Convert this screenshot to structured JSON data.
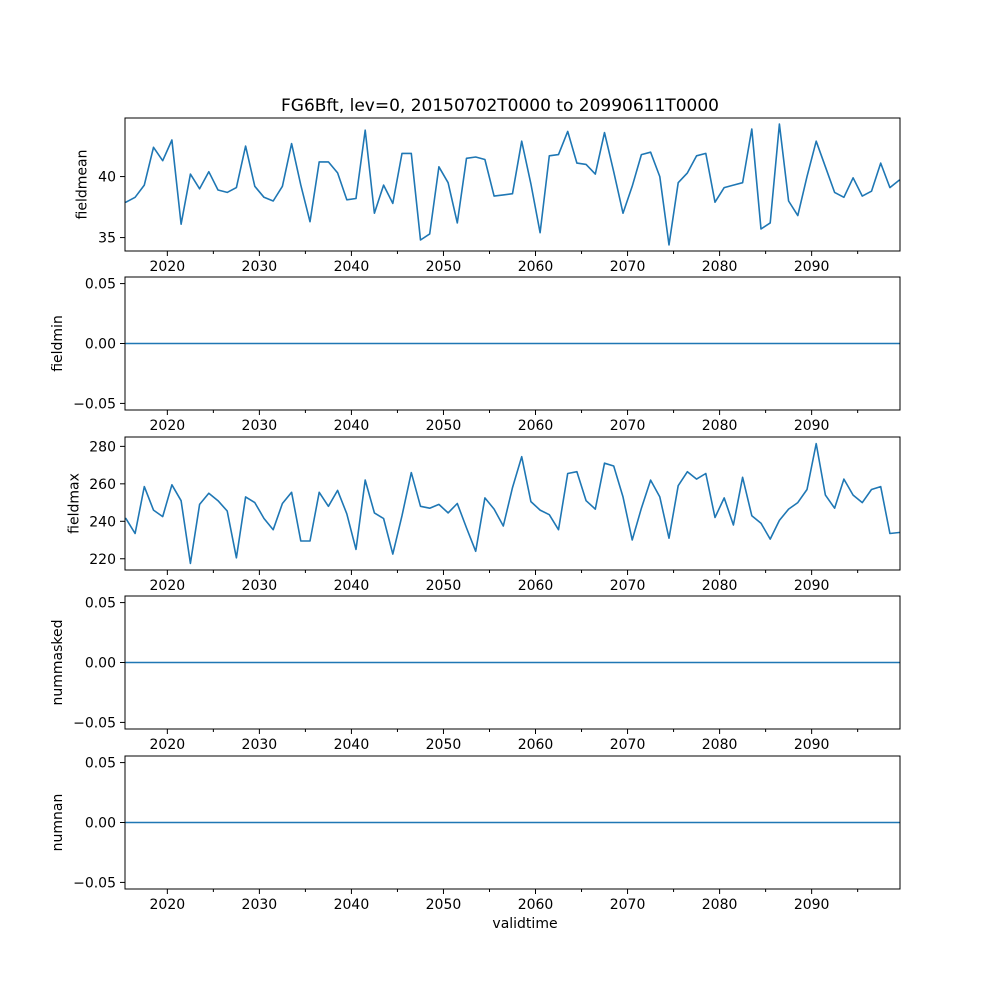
{
  "chart_data": {
    "type": "line",
    "title": "FG6Bft, lev=0, 20150702T0000 to 20990611T0000",
    "xlabel": "validtime",
    "line_color": "#1f77b4",
    "axis_color": "#000000",
    "background_color": "#ffffff",
    "grid": false,
    "legend": false,
    "xlim": [
      2015.4,
      2099.6
    ],
    "x_ticks_major": [
      2020,
      2030,
      2040,
      2050,
      2060,
      2070,
      2080,
      2090
    ],
    "x_ticks_minor": [
      2025,
      2035,
      2045,
      2055,
      2065,
      2075,
      2085,
      2095
    ],
    "x_years": [
      2015.5,
      2016.5,
      2017.5,
      2018.5,
      2019.5,
      2020.5,
      2021.5,
      2022.5,
      2023.5,
      2024.5,
      2025.5,
      2026.5,
      2027.5,
      2028.5,
      2029.5,
      2030.5,
      2031.5,
      2032.5,
      2033.5,
      2034.5,
      2035.5,
      2036.5,
      2037.5,
      2038.5,
      2039.5,
      2040.5,
      2041.5,
      2042.5,
      2043.5,
      2044.5,
      2045.5,
      2046.5,
      2047.5,
      2048.5,
      2049.5,
      2050.5,
      2051.5,
      2052.5,
      2053.5,
      2054.5,
      2055.5,
      2056.5,
      2057.5,
      2058.5,
      2059.5,
      2060.5,
      2061.5,
      2062.5,
      2063.5,
      2064.5,
      2065.5,
      2066.5,
      2067.5,
      2068.5,
      2069.5,
      2070.5,
      2071.5,
      2072.5,
      2073.5,
      2074.5,
      2075.5,
      2076.5,
      2077.5,
      2078.5,
      2079.5,
      2080.5,
      2081.5,
      2082.5,
      2083.5,
      2084.5,
      2085.5,
      2086.5,
      2087.5,
      2088.5,
      2089.5,
      2090.5,
      2091.5,
      2092.5,
      2093.5,
      2094.5,
      2095.5,
      2096.5,
      2097.5,
      2098.5,
      2099.5
    ],
    "panels": [
      {
        "ylabel": "fieldmean",
        "ylim": [
          33.9,
          44.8
        ],
        "yticks": [
          35,
          40
        ],
        "ytick_labels": [
          "35",
          "40"
        ],
        "values": [
          37.9,
          38.3,
          39.3,
          42.4,
          41.3,
          43.0,
          36.1,
          40.2,
          39.0,
          40.4,
          38.9,
          38.7,
          39.1,
          42.5,
          39.2,
          38.3,
          38.0,
          39.2,
          42.7,
          39.3,
          36.3,
          41.2,
          41.2,
          40.3,
          38.1,
          38.2,
          43.8,
          37.0,
          39.3,
          37.8,
          41.9,
          41.9,
          34.8,
          35.3,
          40.8,
          39.5,
          36.2,
          41.5,
          41.6,
          41.4,
          38.4,
          38.5,
          38.6,
          42.9,
          39.4,
          35.4,
          41.7,
          41.8,
          43.7,
          41.1,
          41.0,
          40.2,
          43.6,
          40.4,
          37.0,
          39.2,
          41.8,
          42.0,
          40.0,
          34.4,
          39.5,
          40.3,
          41.7,
          41.9,
          37.9,
          39.1,
          39.3,
          39.5,
          43.9,
          35.7,
          36.2,
          44.3,
          38.0,
          36.8,
          40.0,
          42.9,
          40.8,
          38.7,
          38.3,
          39.9,
          38.4,
          38.8,
          41.1,
          39.1,
          39.7
        ]
      },
      {
        "ylabel": "fieldmin",
        "ylim": [
          -0.0555,
          0.0555
        ],
        "yticks": [
          0.05,
          0.0,
          -0.05
        ],
        "ytick_labels": [
          "0.05",
          "0.00",
          "−0.05"
        ],
        "constant_value": 0
      },
      {
        "ylabel": "fieldmax",
        "ylim": [
          214,
          285
        ],
        "yticks": [
          220,
          240,
          260,
          280
        ],
        "ytick_labels": [
          "220",
          "240",
          "260",
          "280"
        ],
        "values": [
          241.5,
          233.5,
          258.5,
          246,
          242.5,
          259.5,
          251,
          217.5,
          249,
          255,
          251,
          245.5,
          220.5,
          253,
          250,
          241.5,
          235.5,
          249.5,
          255.5,
          229.5,
          229.5,
          255.5,
          248,
          256.5,
          244,
          225,
          262,
          244.5,
          241.5,
          222.5,
          243,
          266,
          248,
          247,
          249,
          244.5,
          249.5,
          236.5,
          224,
          252.5,
          246.5,
          237.5,
          258,
          274.5,
          250.5,
          246,
          243.5,
          235.5,
          265.5,
          266.5,
          251,
          246.5,
          271,
          269.5,
          253,
          230,
          247,
          262,
          253,
          231,
          259,
          266.5,
          262.5,
          265.5,
          242,
          252.5,
          238,
          263.5,
          243,
          239,
          230.5,
          240.5,
          246.5,
          250,
          257,
          281.5,
          254,
          247,
          262.5,
          254,
          250,
          257,
          258.5,
          233.5,
          234
        ]
      },
      {
        "ylabel": "nummasked",
        "ylim": [
          -0.0555,
          0.0555
        ],
        "yticks": [
          0.05,
          0.0,
          -0.05
        ],
        "ytick_labels": [
          "0.05",
          "0.00",
          "−0.05"
        ],
        "constant_value": 0
      },
      {
        "ylabel": "numnan",
        "ylim": [
          -0.0555,
          0.0555
        ],
        "yticks": [
          0.05,
          0.0,
          -0.05
        ],
        "ytick_labels": [
          "0.05",
          "0.00",
          "−0.05"
        ],
        "constant_value": 0
      }
    ]
  }
}
